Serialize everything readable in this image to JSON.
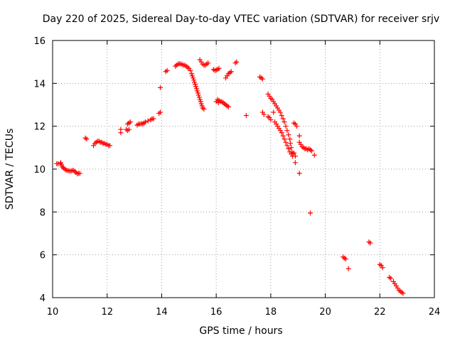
{
  "chart_data": {
    "type": "scatter",
    "title": "Day 220 of 2025, Sidereal Day-to-day VTEC variation (SDTVAR) for receiver srjv",
    "xlabel": "GPS time / hours",
    "ylabel": "SDTVAR / TECUs",
    "xlim": [
      10,
      24
    ],
    "ylim": [
      4,
      16
    ],
    "xticks": [
      10,
      12,
      14,
      16,
      18,
      20,
      22,
      24
    ],
    "yticks": [
      4,
      6,
      8,
      10,
      12,
      14,
      16
    ],
    "xtick_labels": [
      "10",
      "12",
      "14",
      "16",
      "18",
      "20",
      "22",
      "24"
    ],
    "ytick_labels": [
      "4",
      "6",
      "8",
      "10",
      "12",
      "14",
      "16"
    ],
    "grid": true,
    "marker": "+",
    "color": "#ff0000",
    "series": [
      {
        "name": "SDTVAR",
        "points": [
          [
            10.15,
            10.25
          ],
          [
            10.2,
            10.25
          ],
          [
            10.28,
            10.25
          ],
          [
            10.3,
            10.3
          ],
          [
            10.33,
            10.2
          ],
          [
            10.36,
            10.1
          ],
          [
            10.4,
            10.05
          ],
          [
            10.45,
            10.0
          ],
          [
            10.5,
            9.95
          ],
          [
            10.55,
            9.93
          ],
          [
            10.6,
            9.92
          ],
          [
            10.65,
            9.9
          ],
          [
            10.7,
            9.92
          ],
          [
            10.75,
            9.95
          ],
          [
            10.8,
            9.9
          ],
          [
            10.85,
            9.85
          ],
          [
            10.9,
            9.78
          ],
          [
            10.95,
            9.8
          ],
          [
            11.0,
            9.8
          ],
          [
            11.2,
            11.45
          ],
          [
            11.25,
            11.4
          ],
          [
            11.5,
            11.1
          ],
          [
            11.55,
            11.2
          ],
          [
            11.6,
            11.25
          ],
          [
            11.65,
            11.3
          ],
          [
            11.7,
            11.3
          ],
          [
            11.75,
            11.25
          ],
          [
            11.8,
            11.25
          ],
          [
            11.85,
            11.2
          ],
          [
            11.9,
            11.2
          ],
          [
            11.95,
            11.15
          ],
          [
            12.0,
            11.15
          ],
          [
            12.05,
            11.1
          ],
          [
            12.1,
            11.1
          ],
          [
            12.5,
            11.7
          ],
          [
            12.5,
            11.85
          ],
          [
            12.7,
            11.85
          ],
          [
            12.75,
            11.8
          ],
          [
            12.8,
            11.85
          ],
          [
            12.75,
            12.1
          ],
          [
            12.8,
            12.15
          ],
          [
            12.85,
            12.2
          ],
          [
            13.1,
            12.05
          ],
          [
            13.15,
            12.1
          ],
          [
            13.2,
            12.1
          ],
          [
            13.25,
            12.12
          ],
          [
            13.3,
            12.1
          ],
          [
            13.35,
            12.15
          ],
          [
            13.4,
            12.2
          ],
          [
            13.5,
            12.25
          ],
          [
            13.6,
            12.3
          ],
          [
            13.65,
            12.35
          ],
          [
            13.7,
            12.35
          ],
          [
            13.9,
            12.6
          ],
          [
            13.95,
            12.65
          ],
          [
            13.95,
            13.8
          ],
          [
            14.15,
            14.55
          ],
          [
            14.2,
            14.6
          ],
          [
            14.5,
            14.8
          ],
          [
            14.55,
            14.85
          ],
          [
            14.6,
            14.9
          ],
          [
            14.65,
            14.92
          ],
          [
            14.7,
            14.9
          ],
          [
            14.75,
            14.88
          ],
          [
            14.8,
            14.85
          ],
          [
            14.85,
            14.85
          ],
          [
            14.9,
            14.8
          ],
          [
            14.95,
            14.75
          ],
          [
            15.0,
            14.7
          ],
          [
            15.05,
            14.6
          ],
          [
            15.1,
            14.45
          ],
          [
            15.12,
            14.35
          ],
          [
            15.15,
            14.25
          ],
          [
            15.18,
            14.15
          ],
          [
            15.2,
            14.05
          ],
          [
            15.23,
            13.95
          ],
          [
            15.25,
            13.85
          ],
          [
            15.28,
            13.75
          ],
          [
            15.3,
            13.65
          ],
          [
            15.33,
            13.55
          ],
          [
            15.35,
            13.45
          ],
          [
            15.38,
            13.35
          ],
          [
            15.4,
            13.25
          ],
          [
            15.43,
            13.15
          ],
          [
            15.45,
            13.05
          ],
          [
            15.48,
            12.95
          ],
          [
            15.5,
            12.85
          ],
          [
            15.55,
            12.8
          ],
          [
            15.4,
            15.1
          ],
          [
            15.45,
            15.0
          ],
          [
            15.5,
            14.9
          ],
          [
            15.55,
            14.85
          ],
          [
            15.6,
            14.85
          ],
          [
            15.65,
            14.9
          ],
          [
            15.7,
            14.95
          ],
          [
            15.9,
            14.65
          ],
          [
            15.95,
            14.6
          ],
          [
            16.0,
            14.62
          ],
          [
            16.05,
            14.65
          ],
          [
            16.1,
            14.7
          ],
          [
            16.0,
            13.15
          ],
          [
            16.05,
            13.25
          ],
          [
            16.08,
            13.1
          ],
          [
            16.1,
            13.2
          ],
          [
            16.15,
            13.15
          ],
          [
            16.2,
            13.15
          ],
          [
            16.25,
            13.1
          ],
          [
            16.3,
            13.05
          ],
          [
            16.35,
            13.0
          ],
          [
            16.4,
            12.95
          ],
          [
            16.45,
            12.9
          ],
          [
            16.35,
            14.25
          ],
          [
            16.4,
            14.35
          ],
          [
            16.45,
            14.45
          ],
          [
            16.5,
            14.5
          ],
          [
            16.55,
            14.55
          ],
          [
            16.7,
            14.95
          ],
          [
            16.75,
            15.0
          ],
          [
            17.1,
            12.5
          ],
          [
            17.6,
            14.3
          ],
          [
            17.65,
            14.25
          ],
          [
            17.7,
            14.2
          ],
          [
            17.7,
            12.65
          ],
          [
            17.75,
            12.55
          ],
          [
            17.9,
            13.5
          ],
          [
            17.95,
            13.4
          ],
          [
            18.0,
            13.3
          ],
          [
            18.05,
            13.25
          ],
          [
            18.1,
            13.15
          ],
          [
            18.15,
            13.05
          ],
          [
            18.2,
            12.95
          ],
          [
            18.25,
            12.85
          ],
          [
            18.3,
            12.75
          ],
          [
            18.35,
            12.65
          ],
          [
            18.4,
            12.5
          ],
          [
            18.45,
            12.35
          ],
          [
            18.5,
            12.2
          ],
          [
            18.55,
            12.0
          ],
          [
            18.6,
            11.8
          ],
          [
            18.65,
            11.6
          ],
          [
            18.7,
            11.4
          ],
          [
            18.72,
            11.2
          ],
          [
            18.75,
            11.0
          ],
          [
            18.78,
            10.8
          ],
          [
            18.8,
            10.7
          ],
          [
            17.9,
            12.45
          ],
          [
            17.95,
            12.4
          ],
          [
            18.0,
            12.3
          ],
          [
            18.1,
            12.65
          ],
          [
            18.15,
            12.2
          ],
          [
            18.2,
            12.1
          ],
          [
            18.25,
            12.0
          ],
          [
            18.3,
            11.9
          ],
          [
            18.35,
            11.8
          ],
          [
            18.4,
            11.7
          ],
          [
            18.45,
            11.55
          ],
          [
            18.5,
            11.4
          ],
          [
            18.55,
            11.25
          ],
          [
            18.6,
            11.1
          ],
          [
            18.65,
            10.95
          ],
          [
            18.7,
            10.8
          ],
          [
            18.75,
            10.7
          ],
          [
            18.8,
            10.6
          ],
          [
            18.85,
            10.75
          ],
          [
            18.9,
            10.6
          ],
          [
            18.9,
            10.3
          ],
          [
            18.85,
            12.15
          ],
          [
            18.9,
            12.1
          ],
          [
            18.95,
            12.0
          ],
          [
            19.05,
            11.55
          ],
          [
            19.05,
            11.25
          ],
          [
            19.1,
            11.15
          ],
          [
            19.15,
            11.05
          ],
          [
            19.2,
            11.0
          ],
          [
            19.25,
            10.95
          ],
          [
            19.3,
            10.95
          ],
          [
            19.35,
            10.9
          ],
          [
            19.4,
            10.95
          ],
          [
            19.45,
            10.9
          ],
          [
            19.5,
            10.85
          ],
          [
            19.6,
            10.65
          ],
          [
            19.05,
            9.8
          ],
          [
            19.45,
            7.95
          ],
          [
            20.65,
            5.9
          ],
          [
            20.7,
            5.85
          ],
          [
            20.75,
            5.8
          ],
          [
            20.85,
            5.35
          ],
          [
            21.6,
            6.6
          ],
          [
            21.65,
            6.55
          ],
          [
            22.0,
            5.55
          ],
          [
            22.05,
            5.5
          ],
          [
            22.1,
            5.4
          ],
          [
            22.35,
            4.95
          ],
          [
            22.4,
            4.9
          ],
          [
            22.5,
            4.75
          ],
          [
            22.55,
            4.65
          ],
          [
            22.6,
            4.55
          ],
          [
            22.65,
            4.45
          ],
          [
            22.7,
            4.35
          ],
          [
            22.75,
            4.3
          ],
          [
            22.8,
            4.25
          ],
          [
            22.85,
            4.2
          ]
        ]
      }
    ]
  }
}
